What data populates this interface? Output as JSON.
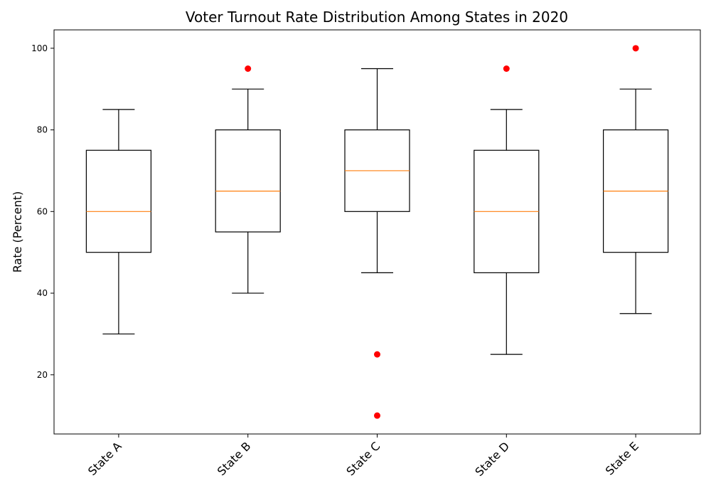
{
  "chart_data": {
    "type": "box",
    "title": "Voter Turnout Rate Distribution Among States in 2020",
    "xlabel": "",
    "ylabel": "Rate (Percent)",
    "ylim": [
      5.5,
      104.5
    ],
    "yticks": [
      20,
      40,
      60,
      80,
      100
    ],
    "grid": false,
    "categories": [
      "State A",
      "State B",
      "State C",
      "State D",
      "State E"
    ],
    "boxes": [
      {
        "whisker_low": 30,
        "q1": 50,
        "median": 60,
        "q3": 75,
        "whisker_high": 85,
        "outliers": []
      },
      {
        "whisker_low": 40,
        "q1": 55,
        "median": 65,
        "q3": 80,
        "whisker_high": 90,
        "outliers": [
          95
        ]
      },
      {
        "whisker_low": 45,
        "q1": 60,
        "median": 70,
        "q3": 80,
        "whisker_high": 95,
        "outliers": [
          25,
          10
        ]
      },
      {
        "whisker_low": 25,
        "q1": 45,
        "median": 60,
        "q3": 75,
        "whisker_high": 85,
        "outliers": [
          95
        ]
      },
      {
        "whisker_low": 35,
        "q1": 50,
        "median": 65,
        "q3": 80,
        "whisker_high": 90,
        "outliers": [
          100
        ]
      }
    ],
    "colors": {
      "box": "#000000",
      "median": "#ff7f0e",
      "outlier": "#ff0000"
    }
  }
}
